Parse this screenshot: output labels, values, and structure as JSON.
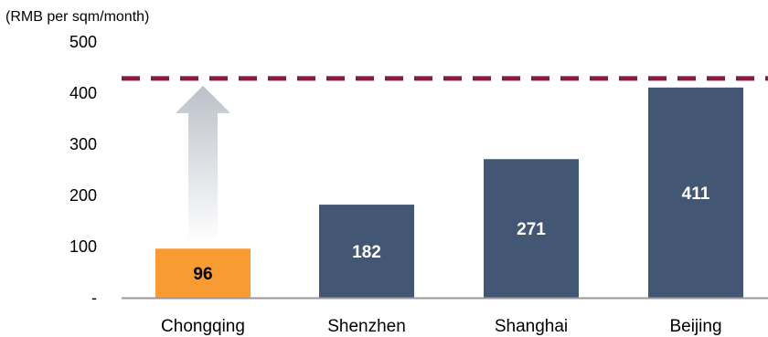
{
  "chart_data": {
    "type": "bar",
    "unit_label": "(RMB per sqm/month)",
    "categories": [
      "Chongqing",
      "Shenzhen",
      "Shanghai",
      "Beijing"
    ],
    "values": [
      96,
      182,
      271,
      411
    ],
    "value_labels": [
      "96",
      "182",
      "271",
      "411"
    ],
    "y_ticks": [
      {
        "value": 0,
        "label": "-"
      },
      {
        "value": 100,
        "label": "100"
      },
      {
        "value": 200,
        "label": "200"
      },
      {
        "value": 300,
        "label": "300"
      },
      {
        "value": 400,
        "label": "400"
      },
      {
        "value": 500,
        "label": "500"
      }
    ],
    "ylim": [
      0,
      500
    ],
    "reference_line": {
      "value": 411,
      "style": "dashed",
      "color": "#8b1a3a"
    },
    "arrow": {
      "category": "Chongqing",
      "from": 96,
      "to": 411,
      "color": "#c8ccd2"
    },
    "colors": {
      "highlight": "#f99a32",
      "bar": "#435674",
      "axis": "#999999",
      "highlight_label": "#000000",
      "bar_label": "#ffffff"
    },
    "highlight_index": 0,
    "grid": false
  }
}
